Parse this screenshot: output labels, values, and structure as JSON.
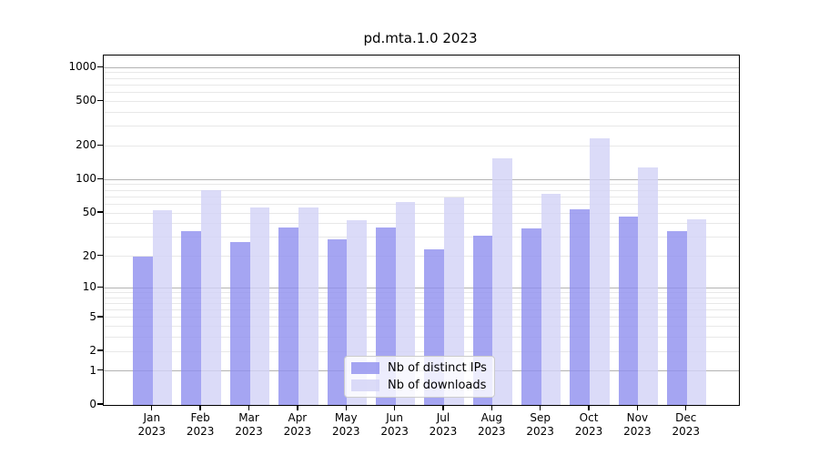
{
  "chart_data": {
    "type": "bar",
    "title": "pd.mta.1.0 2023",
    "categories": [
      "Jan 2023",
      "Feb 2023",
      "Mar 2023",
      "Apr 2023",
      "May 2023",
      "Jun 2023",
      "Jul 2023",
      "Aug 2023",
      "Sep 2023",
      "Oct 2023",
      "Nov 2023",
      "Dec 2023"
    ],
    "series": [
      {
        "name": "Nb of distinct IPs",
        "color": "rgba(143,143,239,0.8)",
        "values": [
          20,
          34,
          27,
          37,
          29,
          37,
          23,
          31,
          36,
          54,
          46,
          34
        ]
      },
      {
        "name": "Nb of downloads",
        "color": "rgba(210,210,246,0.8)",
        "values": [
          53,
          80,
          56,
          56,
          43,
          63,
          69,
          154,
          74,
          235,
          128,
          44
        ]
      }
    ],
    "yscale": "log1p",
    "yticks": [
      0,
      1,
      2,
      5,
      10,
      20,
      50,
      100,
      200,
      500,
      1000
    ],
    "ylim": [
      0,
      1280
    ],
    "xlabel": "",
    "ylabel": "",
    "grid": true,
    "legend_position": "lower center",
    "colors": {
      "grid_major": "#b3b3b3",
      "grid_minor": "#e8e8e8",
      "spine": "#000000",
      "background": "#ffffff"
    }
  }
}
